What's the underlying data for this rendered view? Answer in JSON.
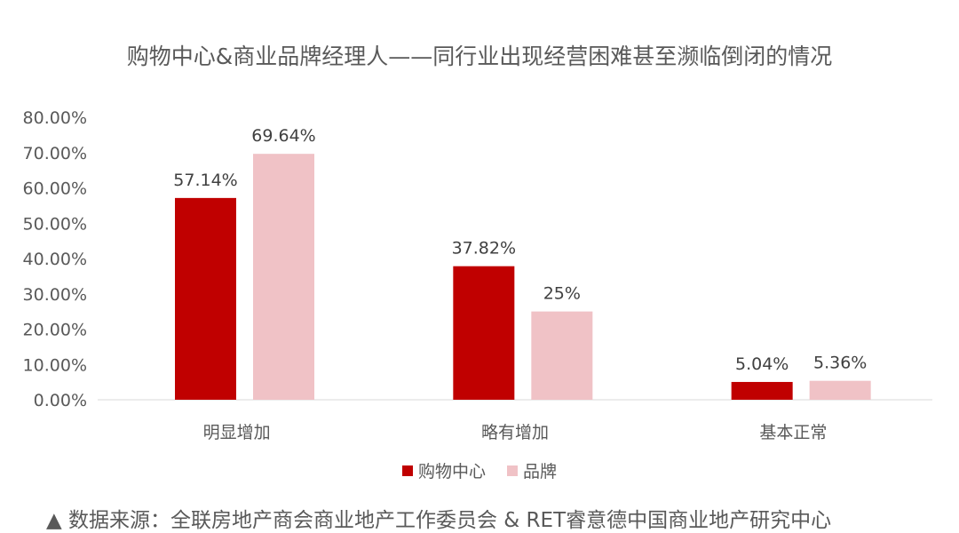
{
  "chart_data": {
    "type": "bar",
    "title": "购物中心&商业品牌经理人——同行业出现经营困难甚至濒临倒闭的情况",
    "categories": [
      "明显增加",
      "略有增加",
      "基本正常"
    ],
    "series": [
      {
        "name": "购物中心",
        "values": [
          57.14,
          37.82,
          5.04
        ],
        "labels": [
          "57.14%",
          "37.82%",
          "5.04%"
        ],
        "color": "#C00000"
      },
      {
        "name": "品牌",
        "values": [
          69.64,
          25,
          5.36
        ],
        "labels": [
          "69.64%",
          "25%",
          "5.36%"
        ],
        "color": "#F0C2C6"
      }
    ],
    "ylim": [
      0,
      80
    ],
    "yticks": [
      "0.00%",
      "10.00%",
      "20.00%",
      "30.00%",
      "40.00%",
      "50.00%",
      "60.00%",
      "70.00%",
      "80.00%"
    ],
    "grid": false,
    "legend": "bottom"
  },
  "source": "▲ 数据来源：全联房地产商会商业地产工作委员会 & RET睿意德中国商业地产研究中心"
}
